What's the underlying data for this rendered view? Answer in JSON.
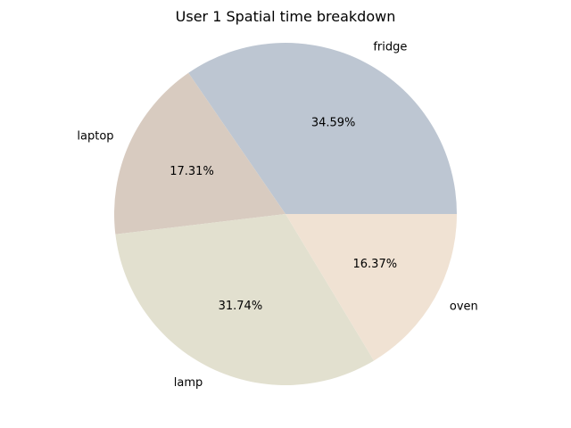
{
  "chart_data": {
    "type": "pie",
    "title": "User 1 Spatial time breakdown",
    "start_angle_deg": 0,
    "direction": "counterclockwise",
    "slices": [
      {
        "label": "fridge",
        "value": 34.59,
        "pct_label": "34.59%",
        "color": "#bdc6d2"
      },
      {
        "label": "laptop",
        "value": 17.31,
        "pct_label": "17.31%",
        "color": "#d8cbc0"
      },
      {
        "label": "lamp",
        "value": 31.74,
        "pct_label": "31.74%",
        "color": "#e2e0cf"
      },
      {
        "label": "oven",
        "value": 16.37,
        "pct_label": "16.37%",
        "color": "#f0e2d3"
      }
    ]
  }
}
